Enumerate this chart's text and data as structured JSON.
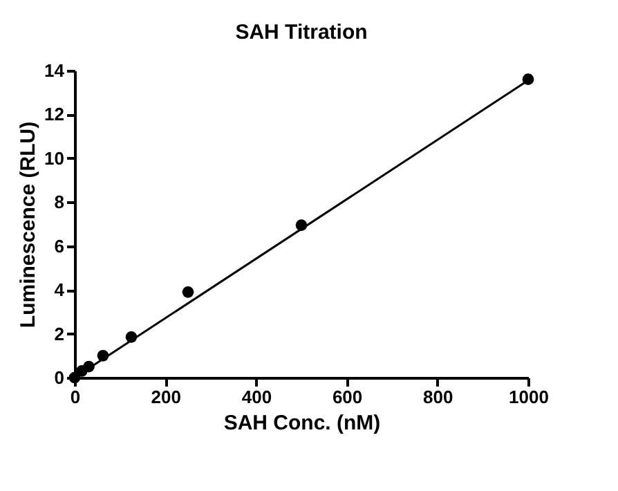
{
  "chart_data": {
    "type": "scatter",
    "title": "SAH Titration",
    "xlabel": "SAH Conc. (nM)",
    "ylabel": "Luminescence (RLU)",
    "xlim": [
      0,
      1000
    ],
    "xticks": [
      0,
      200,
      400,
      600,
      800,
      1000
    ],
    "ylim": [
      0,
      14
    ],
    "yticks": [
      0,
      2,
      4,
      6,
      8,
      10,
      12,
      14
    ],
    "grid": false,
    "series": [
      {
        "color": "#000000",
        "marker": "circle",
        "x": [
          0,
          15.6,
          31.25,
          62.5,
          125,
          250,
          500,
          1000
        ],
        "values": [
          0,
          0.3,
          0.5,
          1.0,
          1.85,
          3.9,
          6.95,
          13.6
        ]
      },
      {
        "type": "line",
        "color": "#000000",
        "line_style": "solid",
        "x": [
          0,
          1000
        ],
        "values": [
          0,
          13.55
        ]
      }
    ]
  }
}
